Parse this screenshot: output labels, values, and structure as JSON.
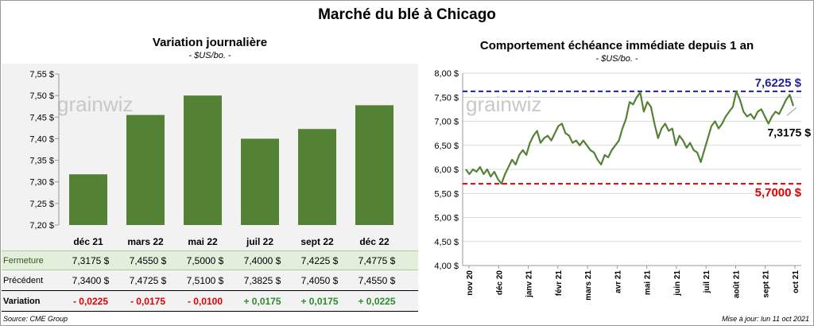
{
  "title": "Marché du blé à Chicago",
  "left_panel": {
    "title": "Variation  journalière",
    "subtitle": "- $US/bo. -",
    "watermark": "grainwiz",
    "row_labels": {
      "close": "Fermeture",
      "previous": "Précédent",
      "variation": "Variation"
    },
    "previous": [
      "7,3400  $",
      "7,4725  $",
      "7,5100  $",
      "7,3825  $",
      "7,4050  $",
      "7,4550  $"
    ],
    "close": [
      "7,3175  $",
      "7,4550  $",
      "7,5000  $",
      "7,4000  $",
      "7,4225  $",
      "7,4775  $"
    ],
    "variation": [
      "- 0,0225",
      "- 0,0175",
      "- 0,0100",
      "+ 0,0175",
      "+ 0,0175",
      "+ 0,0225"
    ],
    "variation_colors": [
      "#e00000",
      "#e00000",
      "#e00000",
      "#2e8b2e",
      "#2e8b2e",
      "#2e8b2e"
    ]
  },
  "right_panel": {
    "title": "Comportement  échéance immédiate depuis 1 an",
    "subtitle": "- $US/bo. -",
    "watermark": "grainwiz",
    "high_label": "7,6225  $",
    "low_label": "5,7000  $",
    "last_label": "7,3175 $"
  },
  "chart_data": [
    {
      "type": "bar",
      "categories": [
        "déc 21",
        "mars 22",
        "mai 22",
        "juil 22",
        "sept 22",
        "déc 22"
      ],
      "values": [
        7.3175,
        7.455,
        7.5,
        7.4,
        7.4225,
        7.4775
      ],
      "ylim": [
        7.2,
        7.55
      ],
      "yticks": [
        "7,20 $",
        "7,25 $",
        "7,30 $",
        "7,35 $",
        "7,40 $",
        "7,45 $",
        "7,50 $",
        "7,55 $"
      ],
      "color": "#548235",
      "grid": false
    },
    {
      "type": "line",
      "x_ticks": [
        "nov 20",
        "déc 20",
        "janv 21",
        "févr 21",
        "mars 21",
        "avr 21",
        "mai 21",
        "juin 21",
        "juil 21",
        "août 21",
        "sept 21",
        "oct 21"
      ],
      "y": [
        6.0,
        5.9,
        6.0,
        5.95,
        6.05,
        5.9,
        6.0,
        5.85,
        5.95,
        5.8,
        5.7,
        5.9,
        6.05,
        6.2,
        6.1,
        6.3,
        6.4,
        6.3,
        6.55,
        6.7,
        6.8,
        6.55,
        6.65,
        6.7,
        6.6,
        6.75,
        6.9,
        6.95,
        6.75,
        6.7,
        6.55,
        6.6,
        6.5,
        6.6,
        6.5,
        6.4,
        6.35,
        6.2,
        6.1,
        6.3,
        6.25,
        6.4,
        6.5,
        6.6,
        6.85,
        7.05,
        7.4,
        7.35,
        7.5,
        7.6,
        7.2,
        7.4,
        7.3,
        6.95,
        6.65,
        6.85,
        6.95,
        6.8,
        6.85,
        6.5,
        6.7,
        6.6,
        6.45,
        6.55,
        6.4,
        6.35,
        6.15,
        6.4,
        6.65,
        6.9,
        7.0,
        6.85,
        6.95,
        7.1,
        7.2,
        7.3,
        7.6225,
        7.45,
        7.2,
        7.1,
        7.15,
        7.05,
        7.2,
        7.25,
        7.1,
        6.95,
        7.1,
        7.2,
        7.15,
        7.3,
        7.45,
        7.55,
        7.3175
      ],
      "ylim": [
        4.0,
        8.0
      ],
      "yticks": [
        "4,00 $",
        "4,50 $",
        "5,00 $",
        "5,50 $",
        "6,00 $",
        "6,50 $",
        "7,00 $",
        "7,50 $",
        "8,00 $"
      ],
      "high": 7.6225,
      "low": 5.7,
      "last": 7.3175,
      "color": "#548235",
      "high_color": "#1f1fa0",
      "low_color": "#e00000",
      "grid": true
    }
  ],
  "footer": {
    "source": "Source: CME Group",
    "updated": "Mise à jour: lun 11 oct 2021"
  }
}
